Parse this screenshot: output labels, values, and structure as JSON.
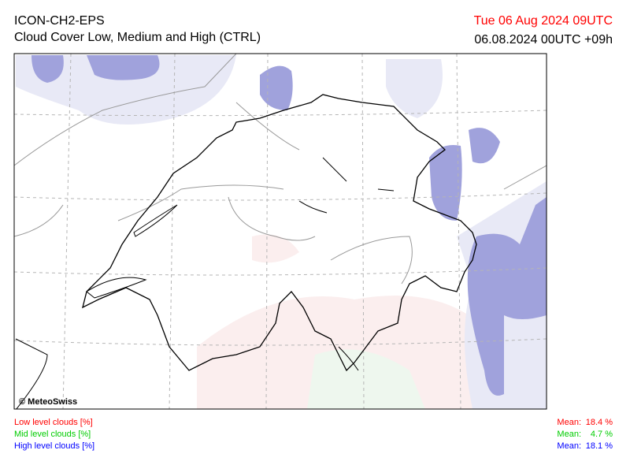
{
  "header": {
    "model": "ICON-CH2-EPS",
    "title": "Cloud Cover Low, Medium and High (CTRL)",
    "valid_time": "Tue 06 Aug 2024 09UTC",
    "run_time": "06.08.2024 00UTC +09h",
    "valid_time_color": "#ff0000"
  },
  "map": {
    "credit": "© MeteoSwiss"
  },
  "legend": [
    {
      "label": "Low level clouds [%]",
      "mean_label": "Mean:",
      "mean": "18.4 %",
      "color": "#ff0000"
    },
    {
      "label": "Mid level clouds [%]",
      "mean_label": "Mean:",
      "mean": "4.7 %",
      "color": "#00cc00"
    },
    {
      "label": "High level clouds [%]",
      "mean_label": "Mean:",
      "mean": "18.1 %",
      "color": "#0000ff"
    }
  ]
}
